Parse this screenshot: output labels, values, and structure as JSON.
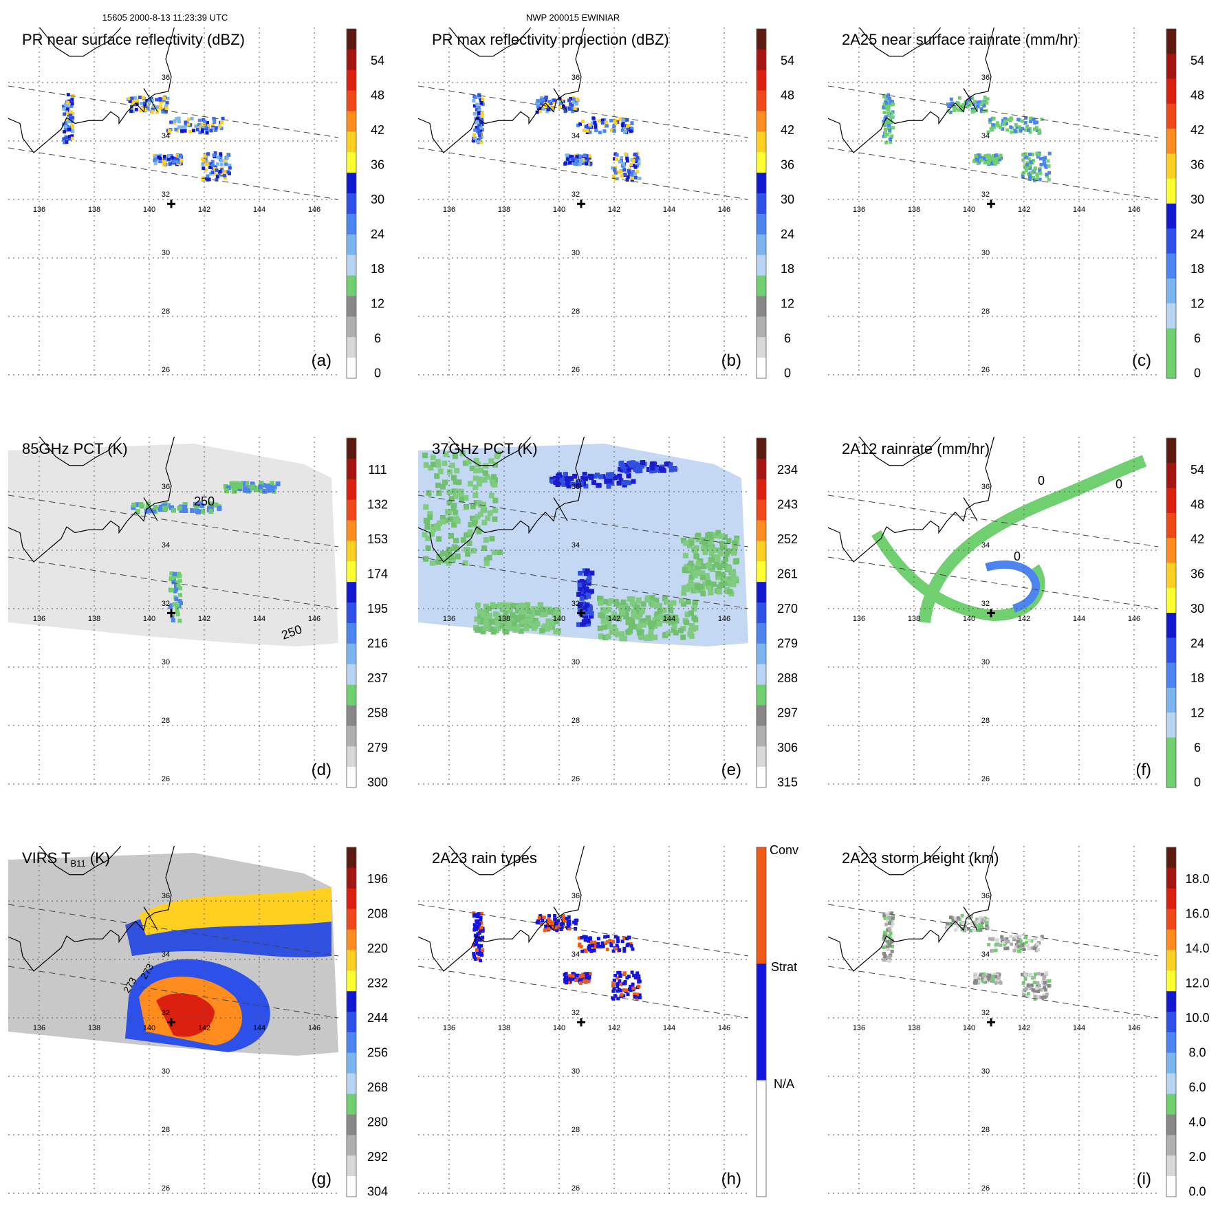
{
  "header": {
    "left": "15605 2000-8-13 11:23:39 UTC",
    "center": "NWP 200015 EWINIAR"
  },
  "lon_labels": [
    "136",
    "138",
    "140",
    "142",
    "144",
    "146"
  ],
  "lat_labels": [
    "26",
    "28",
    "30",
    "32",
    "34",
    "36"
  ],
  "panels": [
    {
      "letter": "(a)",
      "title": "PR near surface reflectivity (dBZ)",
      "type": "swath",
      "cb": {
        "ticks": [
          "54",
          "48",
          "42",
          "36",
          "30",
          "24",
          "18",
          "12",
          "6",
          "0"
        ],
        "colors": [
          "#5c1a10",
          "#a41410",
          "#dc2010",
          "#f04818",
          "#ff8c1c",
          "#ffd020",
          "#ffff30",
          "#1018d0",
          "#2c50e8",
          "#4c84f0",
          "#7cb4f0",
          "#b8d4f4",
          "#70d070",
          "#888888",
          "#b0b0b0",
          "#d8d8d8",
          "#ffffff"
        ]
      }
    },
    {
      "letter": "(b)",
      "title": "PR max reflectivity projection (dBZ)",
      "type": "swath",
      "cb": {
        "ticks": [
          "54",
          "48",
          "42",
          "36",
          "30",
          "24",
          "18",
          "12",
          "6",
          "0"
        ],
        "colors": [
          "#5c1a10",
          "#a41410",
          "#dc2010",
          "#f04818",
          "#ff8c1c",
          "#ffd020",
          "#ffff30",
          "#1018d0",
          "#2c50e8",
          "#4c84f0",
          "#7cb4f0",
          "#b8d4f4",
          "#70d070",
          "#888888",
          "#b0b0b0",
          "#d8d8d8",
          "#ffffff"
        ]
      }
    },
    {
      "letter": "(c)",
      "title": "2A25 near surface rainrate (mm/hr)",
      "type": "swath",
      "cb": {
        "ticks": [
          "54",
          "48",
          "42",
          "36",
          "30",
          "24",
          "18",
          "12",
          "6",
          "0"
        ],
        "colors": [
          "#5c1a10",
          "#a41410",
          "#dc2010",
          "#f04818",
          "#ff8c1c",
          "#ffd020",
          "#ffff30",
          "#1018d0",
          "#2c50e8",
          "#4c84f0",
          "#7cb4f0",
          "#b8d4f4",
          "#70d070",
          "#70d070"
        ]
      }
    },
    {
      "letter": "(d)",
      "title": "85GHz PCT (K)",
      "type": "wide_gray",
      "cb": {
        "ticks": [
          "111",
          "132",
          "153",
          "174",
          "195",
          "216",
          "237",
          "258",
          "279",
          "300"
        ],
        "colors": [
          "#5c1a10",
          "#a41410",
          "#dc2010",
          "#f04818",
          "#ff8c1c",
          "#ffd020",
          "#ffff30",
          "#1018d0",
          "#2c50e8",
          "#4c84f0",
          "#7cb4f0",
          "#b8d4f4",
          "#70d070",
          "#888888",
          "#b0b0b0",
          "#d8d8d8",
          "#ffffff"
        ]
      }
    },
    {
      "letter": "(e)",
      "title": "37GHz PCT (K)",
      "type": "wide_blue",
      "cb": {
        "ticks": [
          "234",
          "243",
          "252",
          "261",
          "270",
          "279",
          "288",
          "297",
          "306",
          "315"
        ],
        "colors": [
          "#5c1a10",
          "#a41410",
          "#dc2010",
          "#f04818",
          "#ff8c1c",
          "#ffd020",
          "#ffff30",
          "#1018d0",
          "#2c50e8",
          "#4c84f0",
          "#7cb4f0",
          "#b8d4f4",
          "#70d070",
          "#888888",
          "#b0b0b0",
          "#d8d8d8",
          "#ffffff"
        ]
      }
    },
    {
      "letter": "(f)",
      "title": "2A12 rainrate (mm/hr)",
      "type": "spiral",
      "cb": {
        "ticks": [
          "54",
          "48",
          "42",
          "36",
          "30",
          "24",
          "18",
          "12",
          "6",
          "0"
        ],
        "colors": [
          "#5c1a10",
          "#a41410",
          "#dc2010",
          "#f04818",
          "#ff8c1c",
          "#ffd020",
          "#ffff30",
          "#1018d0",
          "#2c50e8",
          "#4c84f0",
          "#7cb4f0",
          "#b8d4f4",
          "#70d070",
          "#70d070"
        ]
      }
    },
    {
      "letter": "(g)",
      "title": "VIRS T",
      "title_sub": "B11",
      "title_end": " (K)",
      "type": "virs",
      "cb": {
        "ticks": [
          "196",
          "208",
          "220",
          "232",
          "244",
          "256",
          "268",
          "280",
          "292",
          "304"
        ],
        "colors": [
          "#5c1a10",
          "#a41410",
          "#dc2010",
          "#f04818",
          "#ff8c1c",
          "#ffd020",
          "#ffff30",
          "#1018d0",
          "#2c50e8",
          "#4c84f0",
          "#7cb4f0",
          "#b8d4f4",
          "#70d070",
          "#888888",
          "#b0b0b0",
          "#d8d8d8",
          "#ffffff"
        ]
      }
    },
    {
      "letter": "(h)",
      "title": "2A23 rain types",
      "type": "raintype",
      "cb": {
        "labels": [
          "Conv",
          "Strat",
          "N/A"
        ],
        "colors": [
          "#f05a14",
          "#1414e0",
          "#ffffff"
        ]
      }
    },
    {
      "letter": "(i)",
      "title": "2A23 storm height (km)",
      "type": "height",
      "cb": {
        "ticks": [
          "18.0",
          "16.0",
          "14.0",
          "12.0",
          "10.0",
          "8.0",
          "6.0",
          "4.0",
          "2.0",
          "0.0"
        ],
        "colors": [
          "#5c1a10",
          "#a41410",
          "#dc2010",
          "#f04818",
          "#ff8c1c",
          "#ffd020",
          "#ffff30",
          "#1018d0",
          "#2c50e8",
          "#4c84f0",
          "#7cb4f0",
          "#b8d4f4",
          "#70d070",
          "#888888",
          "#b0b0b0",
          "#d8d8d8",
          "#ffffff"
        ]
      }
    }
  ],
  "contour_labels": {
    "d": [
      "250",
      "250"
    ],
    "f": [
      "0",
      "0",
      "0"
    ],
    "g": [
      "273",
      "273"
    ]
  }
}
